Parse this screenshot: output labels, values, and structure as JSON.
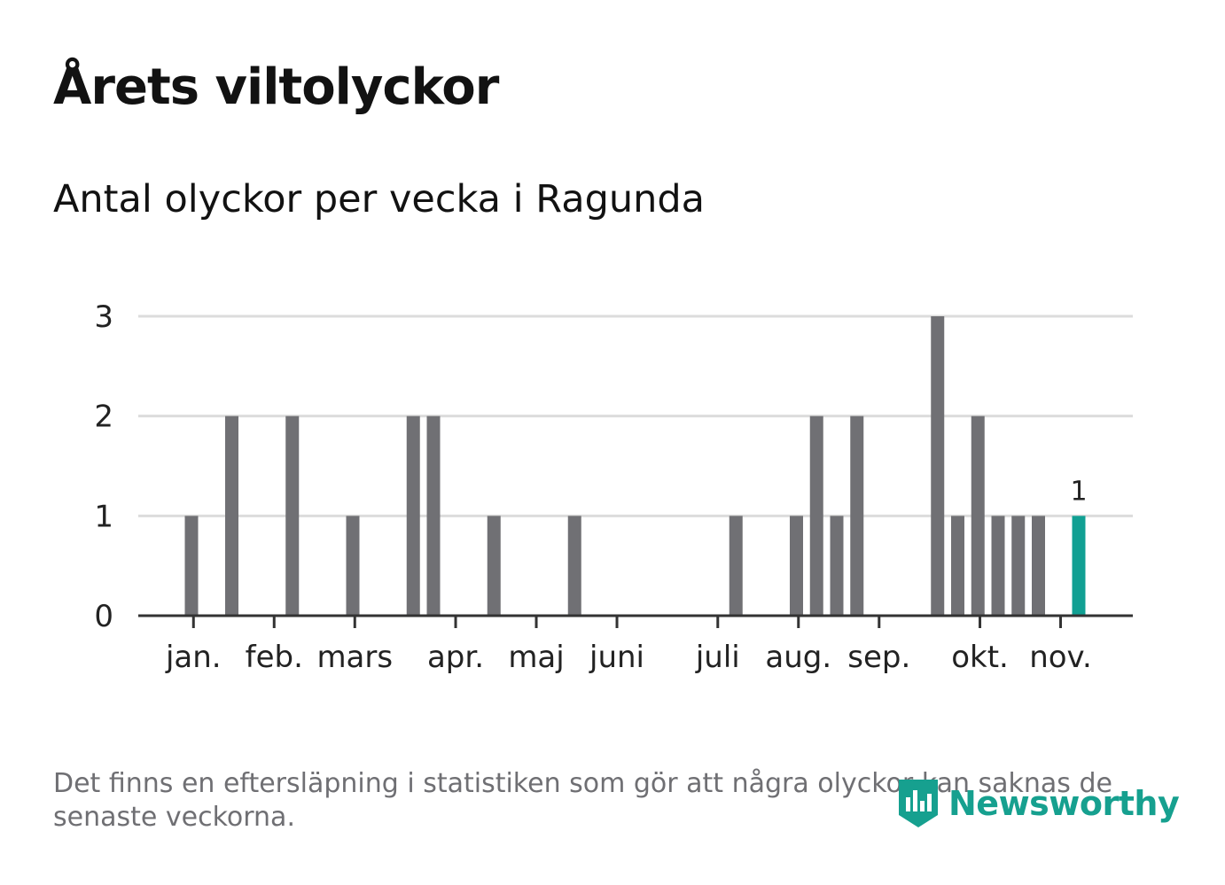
{
  "title": "Årets viltolyckor",
  "subtitle": "Antal olyckor per vecka i Ragunda",
  "footnote": "Det finns en eftersläpning i statistiken som gör att några olyckor kan saknas de senaste veckorna.",
  "brand": "Newsworthy",
  "colors": {
    "bar": "#707074",
    "highlight": "#11a093",
    "grid": "#dcdcdc",
    "axis": "#333333",
    "brand": "#16a08f"
  },
  "chart_data": {
    "type": "bar",
    "title": "Årets viltolyckor",
    "subtitle": "Antal olyckor per vecka i Ragunda",
    "xlabel": "",
    "ylabel": "",
    "ylim": [
      0,
      3
    ],
    "yticks": [
      0,
      1,
      2,
      3
    ],
    "week_range": [
      1,
      45
    ],
    "month_ticks": [
      {
        "label": "jan.",
        "week": 1.1
      },
      {
        "label": "feb.",
        "week": 5.1
      },
      {
        "label": "mars",
        "week": 9.1
      },
      {
        "label": "apr.",
        "week": 14.1
      },
      {
        "label": "maj",
        "week": 18.1
      },
      {
        "label": "juni",
        "week": 22.1
      },
      {
        "label": "juli",
        "week": 27.1
      },
      {
        "label": "aug.",
        "week": 31.1
      },
      {
        "label": "sep.",
        "week": 35.1
      },
      {
        "label": "okt.",
        "week": 40.1
      },
      {
        "label": "nov.",
        "week": 44.1
      }
    ],
    "series": [
      {
        "name": "Antal olyckor",
        "weeks": [
          1,
          3,
          6,
          9,
          12,
          13,
          16,
          20,
          28,
          31,
          32,
          33,
          34,
          38,
          39,
          40,
          41,
          42,
          43,
          45
        ],
        "values": [
          1,
          2,
          2,
          1,
          2,
          2,
          1,
          1,
          1,
          1,
          2,
          1,
          2,
          3,
          1,
          2,
          1,
          1,
          1,
          1
        ]
      }
    ],
    "highlight": {
      "week": 45,
      "value": 1,
      "label": "1"
    }
  }
}
